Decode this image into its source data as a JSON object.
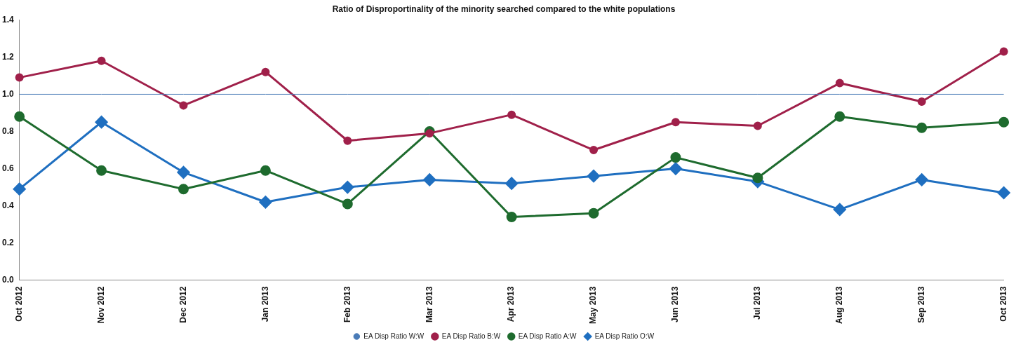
{
  "chart_data": {
    "type": "line",
    "title": "Ratio of Disproportinality of the minority searched compared to the white populations",
    "categories": [
      "Oct 2012",
      "Nov 2012",
      "Dec 2012",
      "Jan 2013",
      "Feb 2013",
      "Mar 2013",
      "Apr 2013",
      "May 2013",
      "Jun 2013",
      "Jul 2013",
      "Aug 2013",
      "Sep 2013",
      "Oct 2013"
    ],
    "series": [
      {
        "name": "EA Disp Ratio W:W",
        "color": "#4a7bb7",
        "marker": "none",
        "values": [
          1,
          1,
          1,
          1,
          1,
          1,
          1,
          1,
          1,
          1,
          1,
          1,
          1
        ]
      },
      {
        "name": "EA Disp Ratio B:W",
        "color": "#a0204a",
        "marker": "circle",
        "values": [
          1.09,
          1.18,
          0.94,
          1.12,
          0.75,
          0.79,
          0.89,
          0.7,
          0.85,
          0.83,
          1.06,
          0.96,
          1.23
        ]
      },
      {
        "name": "EA Disp Ratio A:W",
        "color": "#1e6b2e",
        "marker": "circle",
        "values": [
          0.88,
          0.59,
          0.49,
          0.59,
          0.41,
          0.8,
          0.34,
          0.36,
          0.66,
          0.55,
          0.88,
          0.82,
          0.85
        ]
      },
      {
        "name": "EA Disp Ratio O:W",
        "color": "#1f6fc0",
        "marker": "diamond",
        "values": [
          0.49,
          0.85,
          0.58,
          0.42,
          0.5,
          0.54,
          0.52,
          0.56,
          0.6,
          0.53,
          0.38,
          0.54,
          0.47
        ]
      }
    ],
    "ylim": [
      0,
      1.4
    ],
    "yticks": [
      {
        "value": 0,
        "label": "0.0"
      },
      0.2,
      0.4,
      0.6,
      0.8,
      {
        "value": 1,
        "label": "1.0"
      },
      1.2,
      1.4
    ],
    "grid": false,
    "legend": "bottom"
  }
}
